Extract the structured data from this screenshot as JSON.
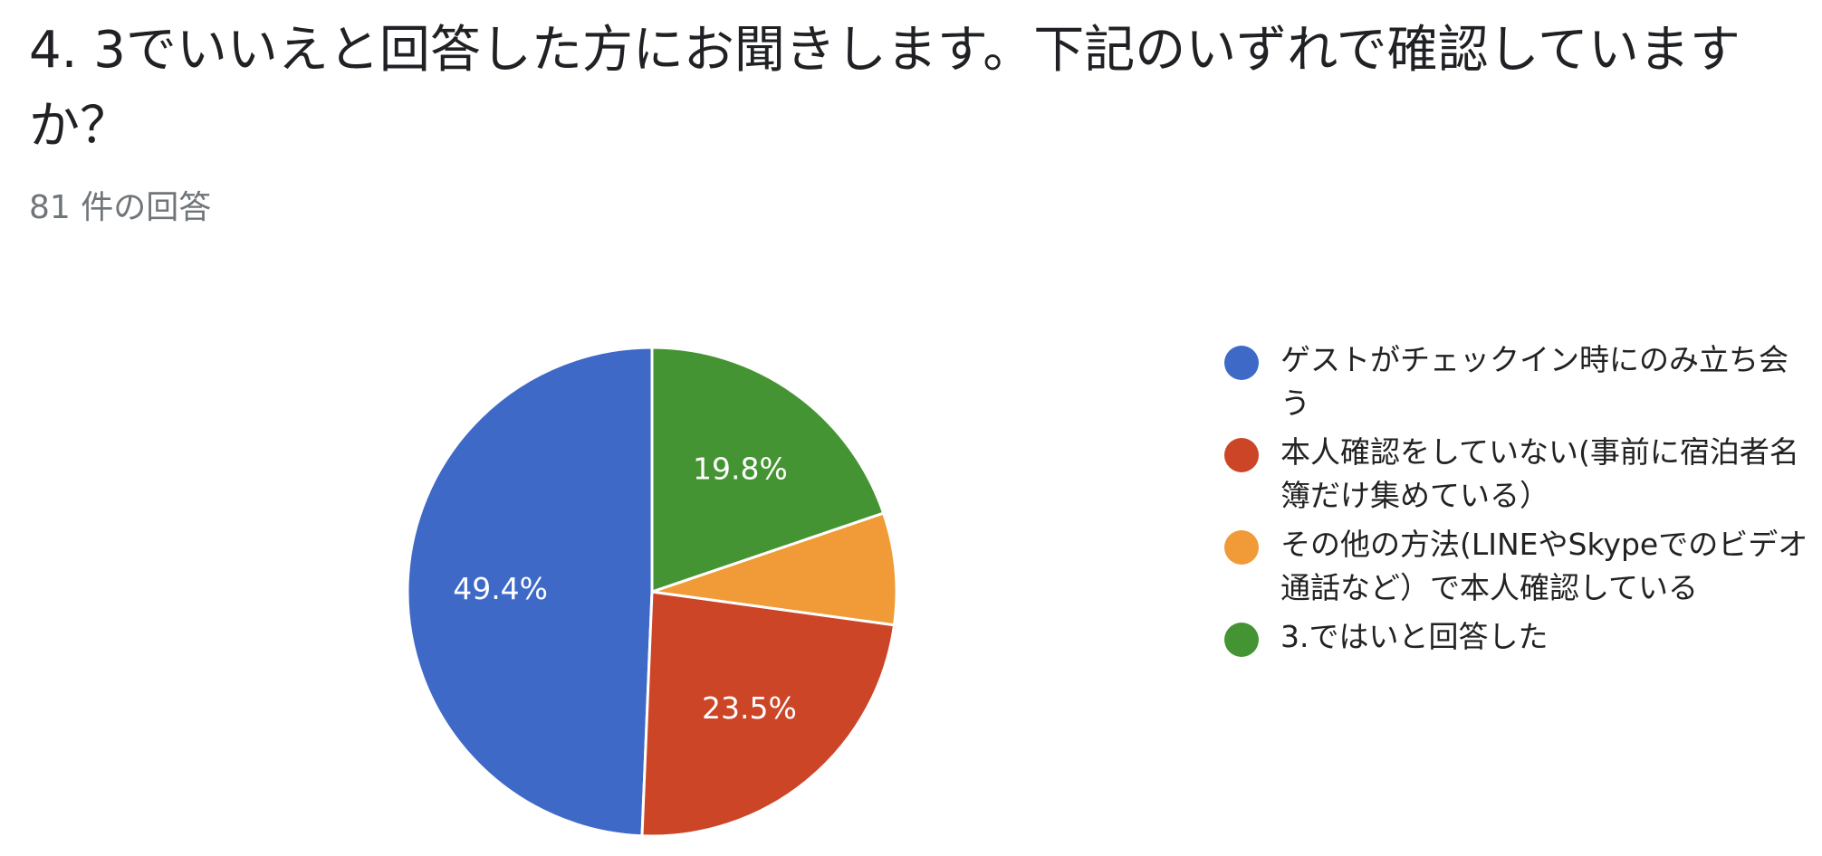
{
  "question": {
    "title": "4. 3でいいえと回答した方にお聞きします。下記のいずれで確認していますか？",
    "response_count": "81 件の回答"
  },
  "chart_data": {
    "type": "pie",
    "start_angle_deg": 90,
    "direction": "counterclockwise",
    "slices": [
      {
        "label": "ゲストがチェックイン時にのみ立ち会う",
        "value": 49.4,
        "display": "49.4%",
        "color": "#3e69c7"
      },
      {
        "label": "本人確認をしていない(事前に宿泊者名簿だけ集めている）",
        "value": 23.5,
        "display": "23.5%",
        "color": "#cc4527"
      },
      {
        "label": "その他の方法(LINEやSkypeでのビデオ通話など）で本人確認している",
        "value": 7.4,
        "display": "",
        "color": "#f09b37"
      },
      {
        "label": "3.ではいと回答した",
        "value": 19.8,
        "display": "19.8%",
        "color": "#459433"
      }
    ],
    "legend_position": "right"
  }
}
